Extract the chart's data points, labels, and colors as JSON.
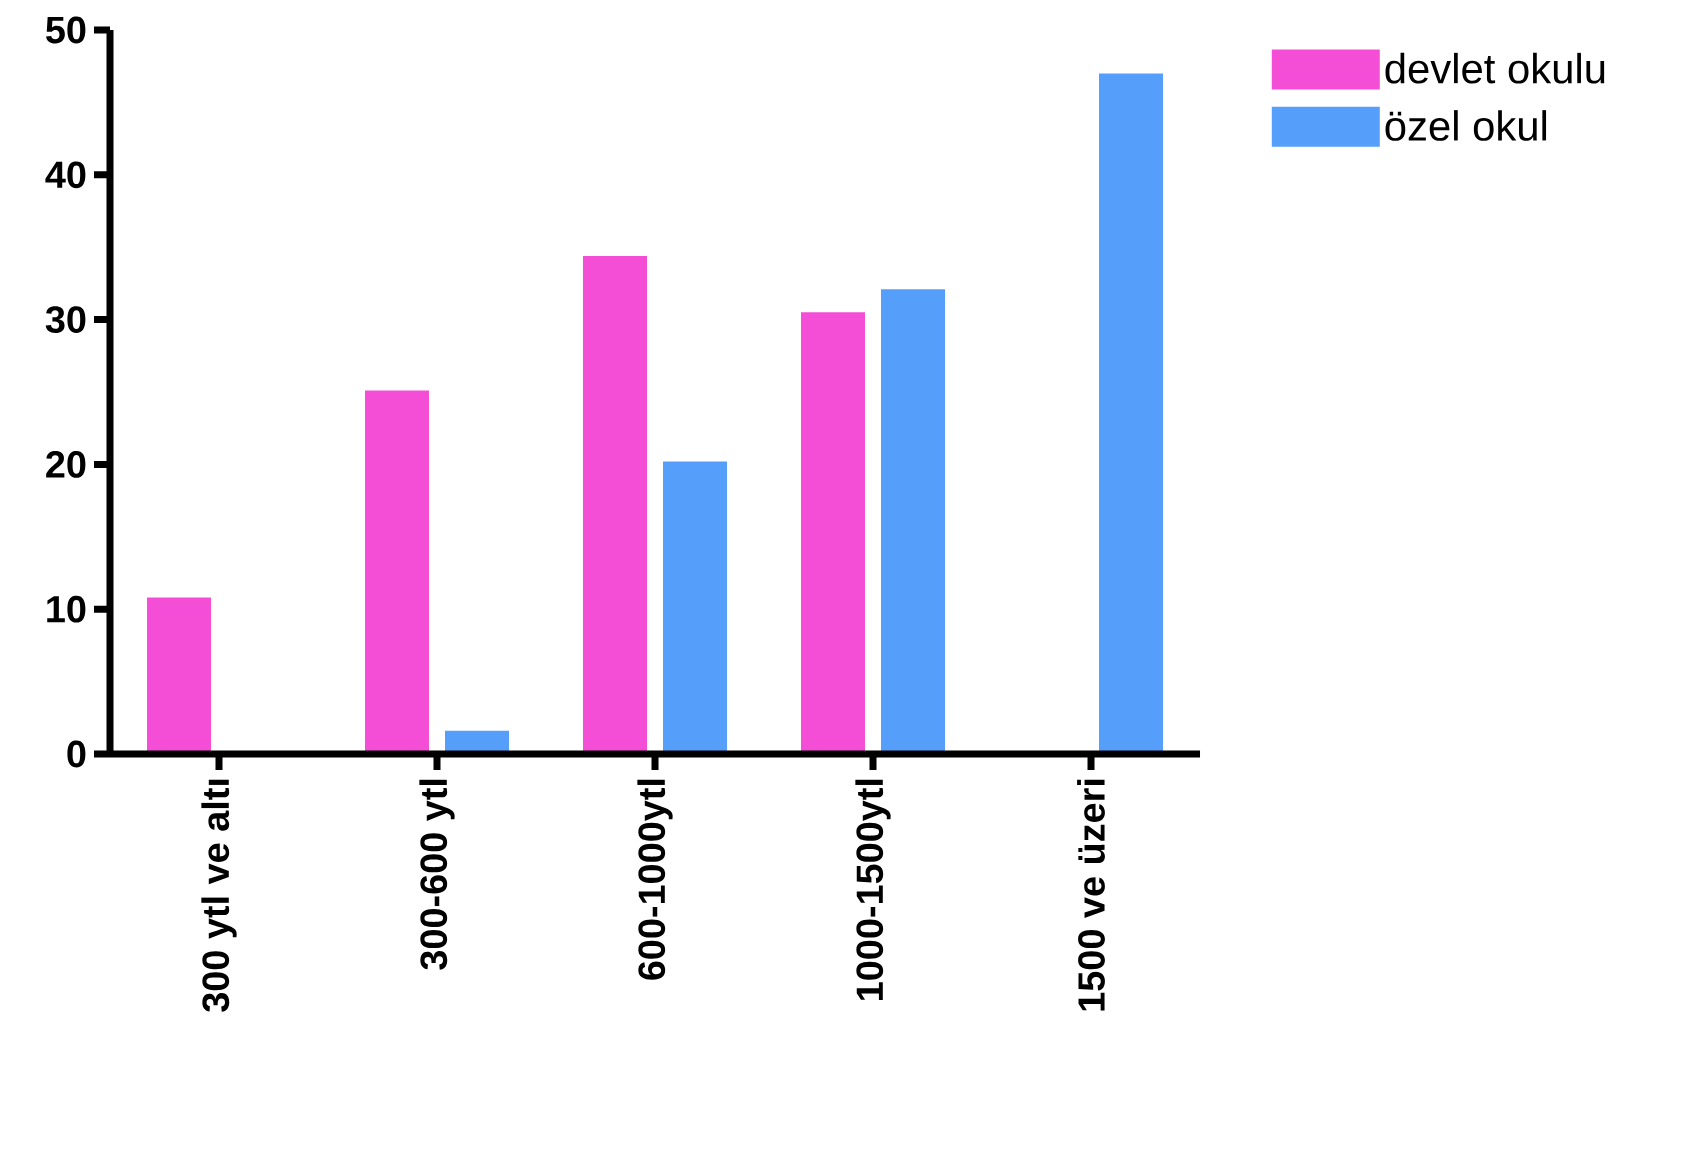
{
  "chart_data": {
    "type": "bar",
    "categories": [
      "300 ytl ve altı",
      "300-600 ytl",
      "600-1000ytl",
      "1000-1500ytl",
      "1500 ve üzeri"
    ],
    "series": [
      {
        "name": "devlet okulu",
        "color": "#f54ed6",
        "values": [
          10.8,
          25.1,
          34.4,
          30.5,
          0
        ]
      },
      {
        "name": "özel okul",
        "color": "#559ffa",
        "values": [
          0,
          1.6,
          20.2,
          32.1,
          47.0
        ]
      }
    ],
    "ylim": [
      0,
      50
    ],
    "yticks": [
      0,
      10,
      20,
      30,
      40,
      50
    ],
    "legend": "top right"
  }
}
